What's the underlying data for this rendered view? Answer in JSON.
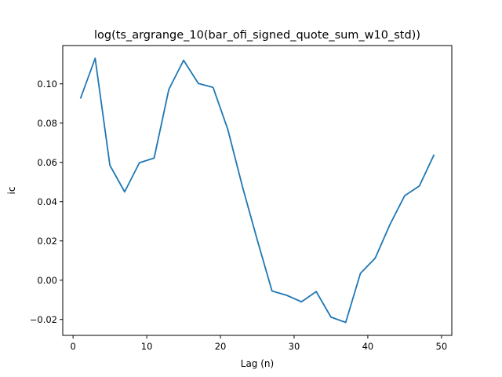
{
  "chart_data": {
    "type": "line",
    "title": "log(ts_argrange_10(bar_ofi_signed_quote_sum_w10_std))",
    "xlabel": "Lag (n)",
    "ylabel": "ic",
    "xlim": [
      -1.4,
      51.4
    ],
    "ylim": [
      -0.0281,
      0.1195
    ],
    "x_ticks": [
      0,
      10,
      20,
      30,
      40,
      50
    ],
    "x_tick_labels": [
      "0",
      "10",
      "20",
      "30",
      "40",
      "50"
    ],
    "y_ticks": [
      -0.02,
      0.0,
      0.02,
      0.04,
      0.06,
      0.08,
      0.1
    ],
    "y_tick_labels": [
      "−0.02",
      "0.00",
      "0.02",
      "0.04",
      "0.06",
      "0.08",
      "0.10"
    ],
    "grid": false,
    "legend": "none",
    "series": [
      {
        "color": "#1f77b4",
        "x": [
          1,
          3,
          5,
          7,
          9,
          11,
          13,
          15,
          17,
          19,
          21,
          23,
          25,
          27,
          29,
          31,
          33,
          35,
          37,
          39,
          41,
          43,
          45,
          47,
          49
        ],
        "values": [
          0.0925,
          0.113,
          0.0585,
          0.045,
          0.0598,
          0.0622,
          0.0972,
          0.112,
          0.1002,
          0.0982,
          0.0768,
          0.0475,
          0.0205,
          -0.0055,
          -0.0077,
          -0.011,
          -0.0058,
          -0.0188,
          -0.0215,
          0.0035,
          0.0112,
          0.0283,
          0.043,
          0.048,
          0.064
        ]
      }
    ]
  }
}
